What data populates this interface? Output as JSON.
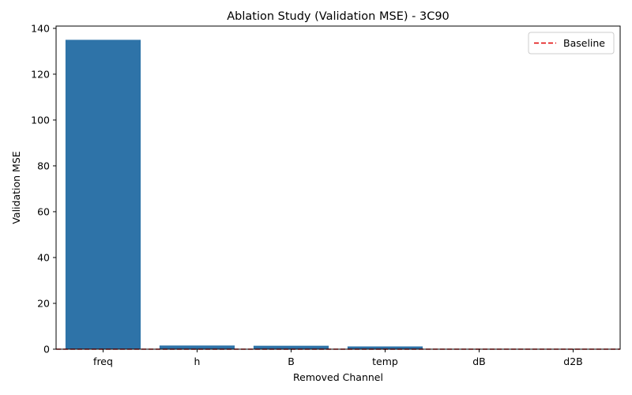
{
  "chart_data": {
    "type": "bar",
    "title": "Ablation Study (Validation MSE) - 3C90",
    "xlabel": "Removed Channel",
    "ylabel": "Validation MSE",
    "categories": [
      "freq",
      "h",
      "B",
      "temp",
      "dB",
      "d2B"
    ],
    "values": [
      135.0,
      1.6,
      1.5,
      1.2,
      0.05,
      0.04
    ],
    "ylim": [
      0,
      141
    ],
    "yticks": [
      0,
      20,
      40,
      60,
      80,
      100,
      120,
      140
    ],
    "baseline": {
      "name": "Baseline",
      "value": 0.0,
      "color": "#e00000",
      "style": "dashed"
    },
    "bar_color": "#2e73a8",
    "grid": false,
    "legend": {
      "position": "top-right",
      "entries": [
        "Baseline"
      ]
    }
  }
}
